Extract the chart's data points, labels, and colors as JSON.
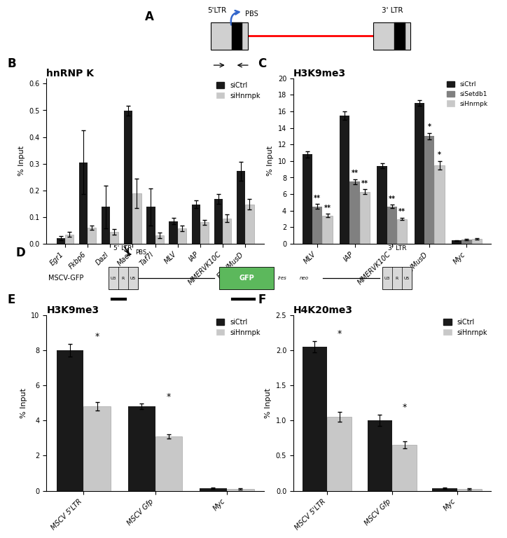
{
  "panel_A": {
    "label": "A"
  },
  "panel_B": {
    "label": "B",
    "title": "hnRNP K",
    "ylabel": "% Input",
    "categories": [
      "Egr1",
      "Fkbp6",
      "Dazl",
      "Mael",
      "Taf7l",
      "MLV",
      "IAP",
      "MMERVK10C",
      "ETn/MusD"
    ],
    "siCtrl_values": [
      0.022,
      0.305,
      0.138,
      0.498,
      0.138,
      0.085,
      0.148,
      0.168,
      0.272
    ],
    "siCtrl_errors": [
      0.008,
      0.12,
      0.08,
      0.018,
      0.07,
      0.012,
      0.015,
      0.018,
      0.035
    ],
    "siHnrnpk_values": [
      0.035,
      0.06,
      0.045,
      0.19,
      0.032,
      0.058,
      0.08,
      0.095,
      0.148
    ],
    "siHnrnpk_errors": [
      0.01,
      0.008,
      0.01,
      0.055,
      0.01,
      0.01,
      0.008,
      0.015,
      0.02
    ],
    "ylim": [
      0,
      0.62
    ],
    "yticks": [
      0.0,
      0.1,
      0.2,
      0.3,
      0.4,
      0.5,
      0.6
    ],
    "bar_color_ctrl": "#1a1a1a",
    "bar_color_hnrnpk": "#c8c8c8",
    "legend_labels": [
      "siCtrl",
      "siHnrnpk"
    ]
  },
  "panel_C": {
    "label": "C",
    "title": "H3K9me3",
    "ylabel": "% Input",
    "categories": [
      "MLV",
      "IAP",
      "MMERVK10C",
      "ETn/MusD",
      "Myc"
    ],
    "siCtrl_values": [
      10.8,
      15.5,
      9.4,
      17.0,
      0.4
    ],
    "siCtrl_errors": [
      0.4,
      0.5,
      0.3,
      0.35,
      0.05
    ],
    "siSetdb1_values": [
      4.5,
      7.5,
      4.5,
      13.0,
      0.5
    ],
    "siSetdb1_errors": [
      0.3,
      0.3,
      0.2,
      0.4,
      0.05
    ],
    "siHnrnpk_values": [
      3.4,
      6.3,
      3.0,
      9.5,
      0.6
    ],
    "siHnrnpk_errors": [
      0.2,
      0.3,
      0.15,
      0.5,
      0.08
    ],
    "ylim": [
      0,
      20
    ],
    "yticks": [
      0,
      2,
      4,
      6,
      8,
      10,
      12,
      14,
      16,
      18,
      20
    ],
    "bar_color_ctrl": "#1a1a1a",
    "bar_color_setdb1": "#808080",
    "bar_color_hnrnpk": "#c8c8c8",
    "legend_labels": [
      "siCtrl",
      "siSetdb1",
      "siHnrnpk"
    ],
    "significance_ctrl_setdb1": [
      "**",
      "**",
      "**",
      "*",
      ""
    ],
    "significance_ctrl_hnrnpk": [
      "**",
      "**",
      "**",
      "*",
      ""
    ]
  },
  "panel_D": {
    "label": "D"
  },
  "panel_E": {
    "label": "E",
    "title": "H3K9me3",
    "ylabel": "% Input",
    "categories": [
      "MSCV 5'LTR",
      "MSCV Gfp",
      "Myc"
    ],
    "siCtrl_values": [
      8.0,
      4.8,
      0.15
    ],
    "siCtrl_errors": [
      0.35,
      0.15,
      0.05
    ],
    "siHnrnpk_values": [
      4.8,
      3.1,
      0.12
    ],
    "siHnrnpk_errors": [
      0.25,
      0.12,
      0.04
    ],
    "ylim": [
      0,
      10
    ],
    "yticks": [
      0,
      2,
      4,
      6,
      8,
      10
    ],
    "bar_color_ctrl": "#1a1a1a",
    "bar_color_hnrnpk": "#c8c8c8",
    "legend_labels": [
      "siCtrl",
      "siHnrnpk"
    ],
    "significance": [
      "*",
      "*",
      ""
    ]
  },
  "panel_F": {
    "label": "F",
    "title": "H4K20me3",
    "ylabel": "% Input",
    "categories": [
      "MSCV 5'LTR",
      "MSCV Gfp",
      "Myc"
    ],
    "siCtrl_values": [
      2.05,
      1.0,
      0.04
    ],
    "siCtrl_errors": [
      0.08,
      0.08,
      0.01
    ],
    "siHnrnpk_values": [
      1.05,
      0.65,
      0.03
    ],
    "siHnrnpk_errors": [
      0.07,
      0.05,
      0.01
    ],
    "ylim": [
      0,
      2.5
    ],
    "yticks": [
      0.0,
      0.5,
      1.0,
      1.5,
      2.0,
      2.5
    ],
    "bar_color_ctrl": "#1a1a1a",
    "bar_color_hnrnpk": "#c8c8c8",
    "legend_labels": [
      "siCtrl",
      "siHnrnpk"
    ],
    "significance": [
      "*",
      "*",
      ""
    ]
  }
}
